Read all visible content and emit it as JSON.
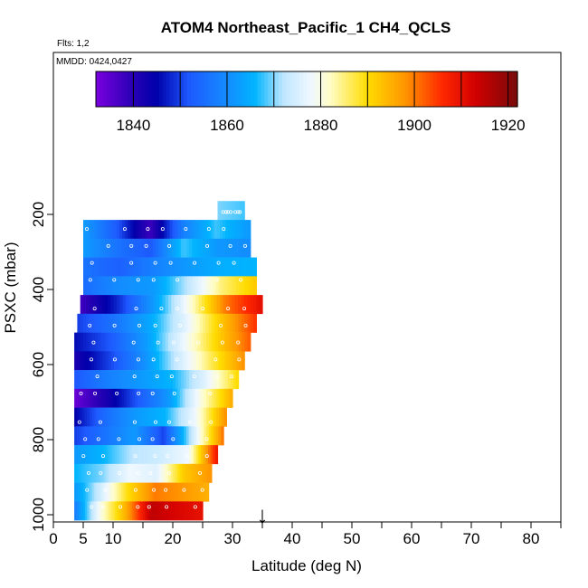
{
  "title": "ATOM4 Northeast_Pacific_1 CH4_QCLS",
  "flights_label": "Flts: 1,2",
  "dates_label": "MMDD: 0424,0427",
  "marker_annotation": "↓",
  "chart_data": {
    "type": "heatmap",
    "title": "ATOM4 Northeast_Pacific_1 CH4_QCLS",
    "xlabel": "Latitude (deg N)",
    "ylabel": "PSXC (mbar)",
    "xlim": [
      0,
      85
    ],
    "ylim": [
      1010,
      0
    ],
    "x_ticks": [
      0,
      5,
      10,
      20,
      30,
      40,
      50,
      60,
      70,
      80
    ],
    "y_ticks": [
      200,
      400,
      600,
      800,
      1000
    ],
    "grid": false,
    "colorbar": {
      "range": [
        1832,
        1922
      ],
      "ticks": [
        1840,
        1860,
        1880,
        1900,
        1920
      ],
      "boundaries": [
        1840,
        1850,
        1860,
        1870,
        1880,
        1890,
        1900,
        1910,
        1920
      ],
      "colors": [
        "#7a00e0",
        "#0a0ab0",
        "#1e6fff",
        "#00b4ff",
        "#dff3ff",
        "#fffdd0",
        "#ffd700",
        "#ff8c00",
        "#e01010",
        "#8b0000"
      ]
    },
    "arrow_marker_latitude": 35,
    "rows": [
      {
        "p": 190,
        "lat": [
          27.5,
          32
        ],
        "v": [
          1870,
          1868
        ]
      },
      {
        "p": 240,
        "lat": [
          5,
          33
        ],
        "v": [
          1862,
          1852,
          1838,
          1858,
          1868,
          1862
        ]
      },
      {
        "p": 290,
        "lat": [
          5,
          33
        ],
        "v": [
          1862,
          1856,
          1852,
          1868,
          1862,
          1860
        ]
      },
      {
        "p": 340,
        "lat": [
          5,
          34
        ],
        "v": [
          1856,
          1853,
          1858,
          1862,
          1865,
          1866
        ]
      },
      {
        "p": 390,
        "lat": [
          5,
          34
        ],
        "v": [
          1855,
          1860,
          1862,
          1872,
          1885,
          1892
        ]
      },
      {
        "p": 440,
        "lat": [
          4.5,
          35
        ],
        "v": [
          1838,
          1848,
          1862,
          1880,
          1900,
          1910
        ]
      },
      {
        "p": 490,
        "lat": [
          4,
          34
        ],
        "v": [
          1850,
          1856,
          1864,
          1876,
          1892,
          1905
        ]
      },
      {
        "p": 540,
        "lat": [
          3.5,
          33
        ],
        "v": [
          1846,
          1852,
          1862,
          1876,
          1890,
          1902
        ]
      },
      {
        "p": 590,
        "lat": [
          3.5,
          32
        ],
        "v": [
          1842,
          1850,
          1860,
          1873,
          1886,
          1898
        ]
      },
      {
        "p": 640,
        "lat": [
          3.5,
          31
        ],
        "v": [
          1852,
          1858,
          1862,
          1866,
          1876,
          1890
        ]
      },
      {
        "p": 690,
        "lat": [
          3.5,
          30
        ],
        "v": [
          1834,
          1842,
          1852,
          1862,
          1880,
          1895
        ]
      },
      {
        "p": 740,
        "lat": [
          3.5,
          29
        ],
        "v": [
          1845,
          1855,
          1862,
          1866,
          1878,
          1898
        ]
      },
      {
        "p": 790,
        "lat": [
          3.5,
          28.5
        ],
        "v": [
          1850,
          1856,
          1862,
          1850,
          1874,
          1900
        ]
      },
      {
        "p": 840,
        "lat": [
          3.5,
          27.5
        ],
        "v": [
          1862,
          1866,
          1872,
          1874,
          1878,
          1908
        ]
      },
      {
        "p": 890,
        "lat": [
          3.5,
          26.5
        ],
        "v": [
          1866,
          1870,
          1878,
          1876,
          1892,
          1898
        ]
      },
      {
        "p": 940,
        "lat": [
          3.5,
          26
        ],
        "v": [
          1862,
          1875,
          1890,
          1900,
          1898,
          1895
        ]
      },
      {
        "p": 990,
        "lat": [
          3.5,
          25
        ],
        "v": [
          1858,
          1880,
          1895,
          1915,
          1912,
          1910
        ]
      }
    ]
  }
}
